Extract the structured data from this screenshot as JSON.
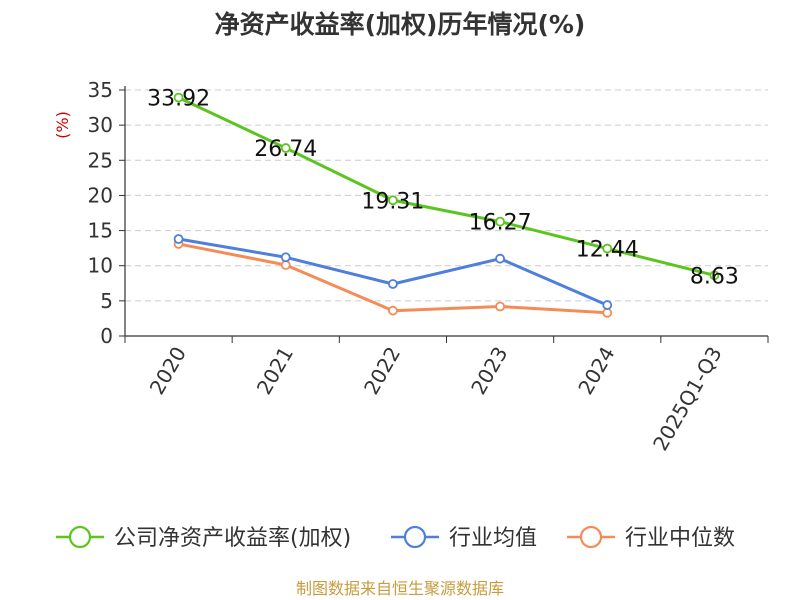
{
  "chart_data": {
    "type": "line",
    "title": "净资产收益率(加权)历年情况(%)",
    "ylabel": "(%)",
    "xlabel": "",
    "categories": [
      "2020",
      "2021",
      "2022",
      "2023",
      "2024",
      "2025Q1-Q3"
    ],
    "ylim": [
      0,
      35
    ],
    "yticks": [
      0,
      5,
      10,
      15,
      20,
      25,
      30,
      35
    ],
    "grid": true,
    "legend_position": "bottom",
    "series": [
      {
        "name": "公司净资产收益率(加权)",
        "color": "#5cc41e",
        "values": [
          33.92,
          26.74,
          19.31,
          16.27,
          12.44,
          8.63
        ],
        "data_labels": [
          "33.92",
          "26.74",
          "19.31",
          "16.27",
          "12.44",
          "8.63"
        ]
      },
      {
        "name": "行业均值",
        "color": "#4e7fdc",
        "values": [
          13.8,
          11.2,
          7.4,
          11.0,
          4.4,
          null
        ]
      },
      {
        "name": "行业中位数",
        "color": "#f58c57",
        "values": [
          13.1,
          10.1,
          3.6,
          4.2,
          3.3,
          null
        ]
      }
    ]
  },
  "source": "制图数据来自恒生聚源数据库",
  "colors": {
    "ylabel": "#cc0000",
    "source": "#c89b3c",
    "axis": "#333333",
    "grid": "#cccccc"
  }
}
